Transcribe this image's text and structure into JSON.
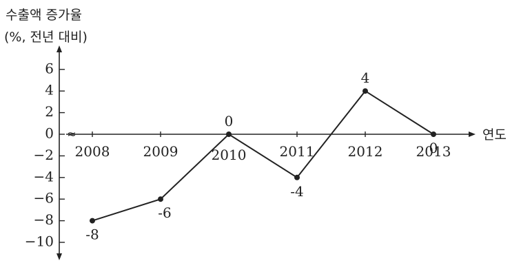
{
  "chart_data": {
    "type": "line",
    "ylabel_line1": "수출액 증가율",
    "ylabel_line2": "(%, 전년 대비)",
    "xlabel": "연도",
    "categories": [
      "2008",
      "2009",
      "2010",
      "2011",
      "2012",
      "2013"
    ],
    "values": [
      -8,
      -6,
      0,
      -4,
      4,
      0
    ],
    "data_labels": [
      "-8",
      "-6",
      "0",
      "-4",
      "4",
      "0"
    ],
    "y_ticks": [
      6,
      4,
      2,
      0,
      -2,
      -4,
      -6,
      -8,
      -10
    ],
    "y_tick_labels": [
      "6",
      "4",
      "2",
      "0",
      "−2",
      "−4",
      "−6",
      "−8",
      "−10"
    ],
    "ylim": [
      -11,
      8
    ],
    "axis_break": "≈",
    "grid": false,
    "line_color": "#222222",
    "marker_color": "#222222"
  }
}
